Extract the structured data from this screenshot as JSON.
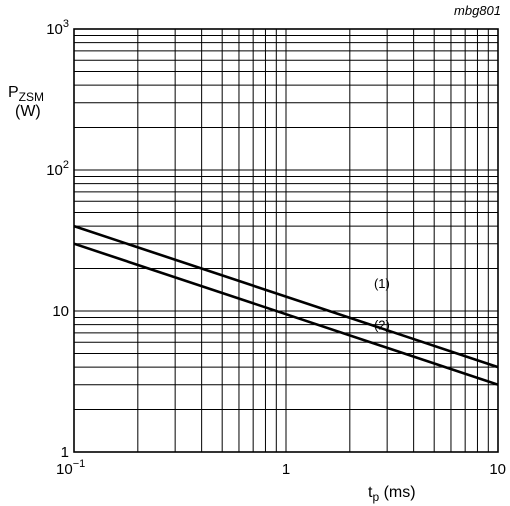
{
  "figure_code": "mbg801",
  "chart_data": {
    "type": "line",
    "title": "",
    "x_scale": "log",
    "y_scale": "log",
    "xlim": [
      0.1,
      10
    ],
    "ylim": [
      1,
      1000
    ],
    "grid": true,
    "xlabel": {
      "main": "t",
      "sub": "p",
      "unit": " (ms)"
    },
    "ylabel": {
      "main": "P",
      "sub": "ZSM",
      "unit": "(W)"
    },
    "x_ticks": [
      {
        "value": 0.1,
        "base": "10",
        "exp": "−1"
      },
      {
        "value": 1,
        "base": "1",
        "exp": ""
      },
      {
        "value": 10,
        "base": "10",
        "exp": ""
      }
    ],
    "y_ticks": [
      {
        "value": 1,
        "base": "1",
        "exp": ""
      },
      {
        "value": 10,
        "base": "10",
        "exp": ""
      },
      {
        "value": 100,
        "base": "10",
        "exp": "2"
      },
      {
        "value": 1000,
        "base": "10",
        "exp": "3"
      }
    ],
    "series": [
      {
        "label": "(1)",
        "points": [
          [
            0.1,
            40
          ],
          [
            10,
            4
          ]
        ],
        "label_at": [
          2.6,
          14.5
        ]
      },
      {
        "label": "(2)",
        "points": [
          [
            0.1,
            30
          ],
          [
            10,
            3
          ]
        ],
        "label_at": [
          2.6,
          7.4
        ]
      }
    ]
  }
}
